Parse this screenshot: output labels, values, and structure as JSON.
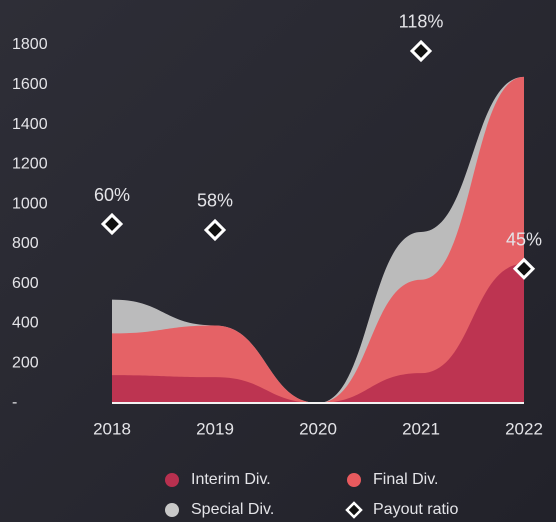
{
  "chart_data": {
    "type": "area",
    "categories": [
      "2018",
      "2019",
      "2020",
      "2021",
      "2022"
    ],
    "series": [
      {
        "name": "Interim Div.",
        "color": "#b8304f",
        "values": [
          140,
          130,
          0,
          150,
          700
        ]
      },
      {
        "name": "Final Div.",
        "color": "#e85a5e",
        "values": [
          210,
          260,
          0,
          470,
          940
        ]
      },
      {
        "name": "Special Div.",
        "color": "#c8c8c8",
        "values": [
          170,
          0,
          0,
          240,
          0
        ]
      },
      {
        "name": "Payout ratio",
        "color": "#ffffff",
        "type": "scatter",
        "axis": "y2",
        "values": [
          60,
          58,
          0,
          118,
          45
        ],
        "value_labels": [
          "60%",
          "58%",
          null,
          "118%",
          "45%"
        ]
      }
    ],
    "stacked": true,
    "ylim": [
      0,
      1950
    ],
    "yticks": [
      {
        "value": 0,
        "label": "-"
      },
      200,
      400,
      600,
      800,
      1000,
      1200,
      1400,
      1600,
      1800
    ],
    "y2lim": [
      0,
      130
    ],
    "grid": false
  }
}
